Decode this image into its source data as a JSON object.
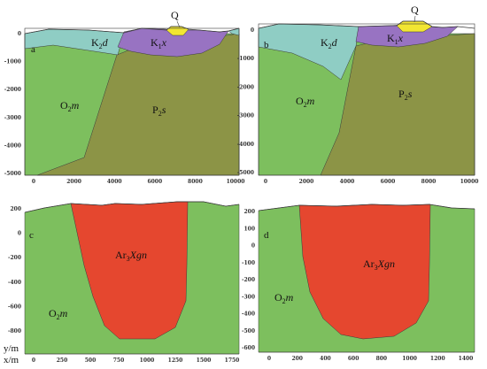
{
  "colors": {
    "green": "#7dbf5e",
    "olive": "#8c9446",
    "cyan": "#8fcdc4",
    "purple": "#9873c2",
    "yellow": "#f2e632",
    "red": "#e5472f",
    "outline": "#3a3a3a"
  },
  "panels": [
    {
      "id": "a",
      "letter": "a",
      "x_ticks": [
        "0",
        "2000",
        "4000",
        "6000",
        "8000",
        "10000"
      ],
      "y_ticks": [
        "0",
        "-1000",
        "-2000",
        "-3000",
        "-4000",
        "-5000"
      ],
      "units": {
        "O": {
          "base": "O",
          "sub": "2",
          "suffix": "m"
        },
        "P": {
          "base": "P",
          "sub": "2",
          "suffix": "s"
        },
        "K2": {
          "base": "K",
          "sub": "2",
          "suffix": "d"
        },
        "K1": {
          "base": "K",
          "sub": "1",
          "suffix": "x"
        },
        "Q": {
          "base": "Q",
          "sub": "",
          "suffix": ""
        }
      }
    },
    {
      "id": "b",
      "letter": "b",
      "x_ticks": [
        "0",
        "2000",
        "4000",
        "6000",
        "8000",
        "10000"
      ],
      "y_ticks": [
        "0",
        "-1000",
        "-2000",
        "-3000",
        "-4000",
        "-5000"
      ],
      "units": {
        "O": {
          "base": "O",
          "sub": "2",
          "suffix": "m"
        },
        "P": {
          "base": "P",
          "sub": "2",
          "suffix": "s"
        },
        "K2": {
          "base": "K",
          "sub": "2",
          "suffix": "d"
        },
        "K1": {
          "base": "K",
          "sub": "1",
          "suffix": "x"
        },
        "Q": {
          "base": "Q",
          "sub": "",
          "suffix": ""
        }
      }
    },
    {
      "id": "c",
      "letter": "c",
      "x_axis_label": "x/m",
      "y_axis_label": "y/m",
      "x_ticks": [
        "0",
        "250",
        "500",
        "750",
        "1000",
        "1250",
        "1500",
        "1750"
      ],
      "y_ticks": [
        "200",
        "0",
        "-200",
        "-400",
        "-600",
        "-800"
      ],
      "units": {
        "O": {
          "base": "O",
          "sub": "2",
          "suffix": "m"
        },
        "Ar": {
          "base": "Ar",
          "sub": "3",
          "suffix": "Xgn"
        }
      }
    },
    {
      "id": "d",
      "letter": "d",
      "x_ticks": [
        "0",
        "200",
        "400",
        "600",
        "800",
        "1000",
        "1200",
        "1400"
      ],
      "y_ticks": [
        "200",
        "100",
        "0",
        "-100",
        "-200",
        "-300",
        "-400",
        "-500",
        "-600"
      ],
      "units": {
        "O": {
          "base": "O",
          "sub": "2",
          "suffix": "m"
        },
        "Ar": {
          "base": "Ar",
          "sub": "3",
          "suffix": "Xgn"
        }
      }
    }
  ]
}
